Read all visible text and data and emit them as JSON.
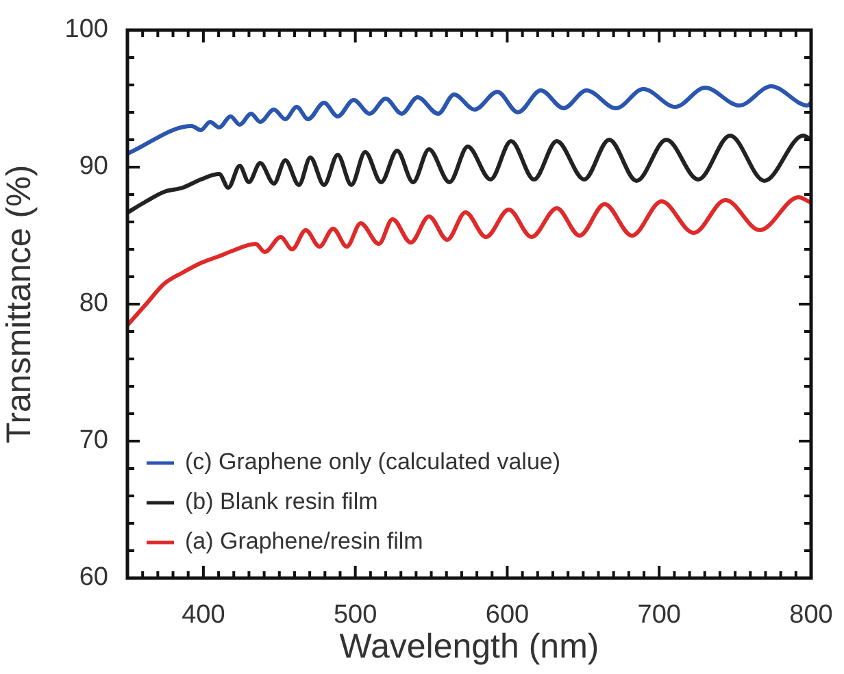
{
  "chart_data": {
    "type": "line",
    "xlabel": "Wavelength (nm)",
    "ylabel": "Transmittance (%)",
    "xlim": [
      350,
      800
    ],
    "ylim": [
      60,
      100
    ],
    "xticks": [
      {
        "value": 360,
        "label": null
      },
      {
        "value": 370,
        "label": null
      },
      {
        "value": 380,
        "label": null
      },
      {
        "value": 390,
        "label": null
      },
      400,
      {
        "value": 410,
        "label": null
      },
      {
        "value": 420,
        "label": null
      },
      {
        "value": 430,
        "label": null
      },
      {
        "value": 440,
        "label": null
      },
      {
        "value": 450,
        "label": null
      },
      {
        "value": 460,
        "label": null
      },
      {
        "value": 470,
        "label": null
      },
      {
        "value": 480,
        "label": null
      },
      {
        "value": 490,
        "label": null
      },
      500,
      {
        "value": 510,
        "label": null
      },
      {
        "value": 520,
        "label": null
      },
      {
        "value": 530,
        "label": null
      },
      {
        "value": 540,
        "label": null
      },
      {
        "value": 550,
        "label": null
      },
      {
        "value": 560,
        "label": null
      },
      {
        "value": 570,
        "label": null
      },
      {
        "value": 580,
        "label": null
      },
      {
        "value": 590,
        "label": null
      },
      600,
      {
        "value": 610,
        "label": null
      },
      {
        "value": 620,
        "label": null
      },
      {
        "value": 630,
        "label": null
      },
      {
        "value": 640,
        "label": null
      },
      {
        "value": 650,
        "label": null
      },
      {
        "value": 660,
        "label": null
      },
      {
        "value": 670,
        "label": null
      },
      {
        "value": 680,
        "label": null
      },
      {
        "value": 690,
        "label": null
      },
      700,
      {
        "value": 710,
        "label": null
      },
      {
        "value": 720,
        "label": null
      },
      {
        "value": 730,
        "label": null
      },
      {
        "value": 740,
        "label": null
      },
      {
        "value": 750,
        "label": null
      },
      {
        "value": 760,
        "label": null
      },
      {
        "value": 770,
        "label": null
      },
      {
        "value": 780,
        "label": null
      },
      {
        "value": 790,
        "label": null
      },
      800
    ],
    "yticks": [
      60,
      {
        "value": 62,
        "label": null
      },
      {
        "value": 64,
        "label": null
      },
      {
        "value": 66,
        "label": null
      },
      {
        "value": 68,
        "label": null
      },
      70,
      {
        "value": 72,
        "label": null
      },
      {
        "value": 74,
        "label": null
      },
      {
        "value": 76,
        "label": null
      },
      {
        "value": 78,
        "label": null
      },
      80,
      {
        "value": 82,
        "label": null
      },
      {
        "value": 84,
        "label": null
      },
      {
        "value": 86,
        "label": null
      },
      {
        "value": 88,
        "label": null
      },
      90,
      {
        "value": 92,
        "label": null
      },
      {
        "value": 94,
        "label": null
      },
      {
        "value": 96,
        "label": null
      },
      {
        "value": 98,
        "label": null
      },
      100
    ],
    "legend": "bottom left",
    "line_style": "solid",
    "series": [
      {
        "name": "(c) Graphene only (calculated value)",
        "color": "#2a56b0",
        "x": [
          350.3,
          392.3,
          398.3,
          404.4,
          410.4,
          417.9,
          423.9,
          431.4,
          437.4,
          446.4,
          453.9,
          461.4,
          468.9,
          479.4,
          488.4,
          498.9,
          509.5,
          520.0,
          530.5,
          541.0,
          554.5,
          565.0,
          578.5,
          593.5,
          607.0,
          622.1,
          637.1,
          652.1,
          671.6,
          689.6,
          710.6,
          730.2,
          752.7,
          773.7,
          797.7,
          800
        ],
        "values": [
          91.0,
          93.0,
          92.7,
          93.3,
          92.9,
          93.7,
          93.1,
          93.9,
          93.3,
          94.2,
          93.5,
          94.4,
          93.5,
          94.7,
          93.7,
          94.9,
          93.9,
          95.0,
          93.9,
          95.1,
          93.9,
          95.3,
          94.2,
          95.5,
          94.0,
          95.6,
          94.3,
          95.6,
          94.3,
          95.7,
          94.4,
          95.8,
          94.5,
          95.9,
          94.5,
          94.7
        ]
      },
      {
        "name": "(b) Blank resin film",
        "color": "#222222",
        "x": [
          350.3,
          362.3,
          374.3,
          386.3,
          398.3,
          410.4,
          416.4,
          423.9,
          429.9,
          437.4,
          446.4,
          453.9,
          462.9,
          470.4,
          479.4,
          488.4,
          497.4,
          506.5,
          517.0,
          527.5,
          538.0,
          548.5,
          562.0,
          574.0,
          589.0,
          602.5,
          617.6,
          632.6,
          650.6,
          667.1,
          685.1,
          704.7,
          725.7,
          746.7,
          769.2,
          794.8,
          800
        ],
        "values": [
          86.7,
          87.5,
          88.2,
          88.5,
          89.1,
          89.5,
          88.5,
          90.1,
          88.9,
          90.3,
          88.8,
          90.5,
          88.7,
          90.7,
          88.7,
          90.9,
          88.7,
          91.1,
          88.9,
          91.2,
          88.9,
          91.3,
          88.9,
          91.5,
          89.1,
          91.9,
          89.1,
          91.9,
          89.1,
          92.0,
          89.0,
          92.0,
          89.1,
          92.3,
          89.0,
          92.3,
          92.0
        ]
      },
      {
        "name": "(a) Graphene/resin film",
        "color": "#e02a2a",
        "x": [
          350.3,
          362.3,
          374.3,
          386.3,
          398.3,
          410.4,
          419.4,
          434.4,
          440.4,
          450.9,
          458.4,
          467.4,
          476.4,
          485.4,
          494.4,
          503.5,
          515.5,
          524.5,
          536.5,
          548.5,
          560.5,
          572.5,
          586.0,
          601.0,
          616.0,
          632.6,
          647.6,
          664.1,
          682.1,
          701.6,
          722.7,
          743.7,
          766.2,
          791.7,
          800
        ],
        "values": [
          78.5,
          80.0,
          81.5,
          82.3,
          83.0,
          83.5,
          83.9,
          84.4,
          83.8,
          84.9,
          84.0,
          85.4,
          84.2,
          85.5,
          84.2,
          85.9,
          84.4,
          86.2,
          84.5,
          86.4,
          84.7,
          86.7,
          84.9,
          86.9,
          84.9,
          87.0,
          85.0,
          87.3,
          85.0,
          87.5,
          85.2,
          87.6,
          85.4,
          87.8,
          87.4
        ]
      }
    ]
  }
}
